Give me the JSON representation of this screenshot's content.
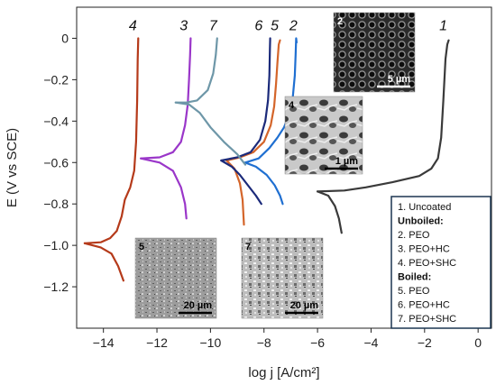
{
  "chart_data": {
    "type": "line",
    "xlabel": "log j [A/cm²]",
    "ylabel": "E (V vs SCE)",
    "xlim": [
      -15,
      0.5
    ],
    "ylim": [
      -1.4,
      0.15
    ],
    "xticks": [
      -14,
      -12,
      -10,
      -8,
      -6,
      -4,
      -2,
      0
    ],
    "yticks": [
      0,
      -0.2,
      -0.4,
      -0.6,
      -0.8,
      -1.0,
      -1.2
    ],
    "xtick_labels": [
      "−14",
      "−12",
      "−10",
      "−8",
      "−6",
      "−4",
      "−2",
      "0"
    ],
    "ytick_labels": [
      "0",
      "−0.2",
      "−0.4",
      "−0.6",
      "−0.8",
      "−1.0",
      "−1.2"
    ],
    "grid": false,
    "series": [
      {
        "id": "1",
        "color": "#3a3a3a",
        "points": [
          [
            -6.0,
            -0.74
          ],
          [
            -5.0,
            -0.735
          ],
          [
            -4.2,
            -0.72
          ],
          [
            -3.2,
            -0.695
          ],
          [
            -2.2,
            -0.665
          ],
          [
            -1.75,
            -0.63
          ],
          [
            -1.5,
            -0.58
          ],
          [
            -1.38,
            -0.48
          ],
          [
            -1.3,
            -0.3
          ],
          [
            -1.22,
            -0.1
          ],
          [
            -1.15,
            -0.03
          ],
          [
            -1.1,
            -0.01
          ]
        ]
      },
      {
        "id": "1c",
        "color": "#3a3a3a",
        "points": [
          [
            -6.0,
            -0.74
          ],
          [
            -5.6,
            -0.76
          ],
          [
            -5.35,
            -0.81
          ],
          [
            -5.2,
            -0.87
          ],
          [
            -5.1,
            -0.94
          ]
        ]
      },
      {
        "id": "2",
        "color": "#1f6fd1",
        "points": [
          [
            -8.7,
            -0.6
          ],
          [
            -8.2,
            -0.58
          ],
          [
            -7.8,
            -0.53
          ],
          [
            -7.5,
            -0.48
          ],
          [
            -7.25,
            -0.43
          ],
          [
            -7.1,
            -0.38
          ],
          [
            -6.95,
            -0.32
          ],
          [
            -6.9,
            -0.25
          ],
          [
            -6.85,
            -0.18
          ],
          [
            -6.82,
            -0.08
          ],
          [
            -6.8,
            0.0
          ],
          [
            -6.78,
            -0.02
          ]
        ]
      },
      {
        "id": "2c",
        "color": "#1f6fd1",
        "points": [
          [
            -8.7,
            -0.6
          ],
          [
            -8.3,
            -0.62
          ],
          [
            -7.9,
            -0.66
          ],
          [
            -7.6,
            -0.71
          ],
          [
            -7.4,
            -0.76
          ],
          [
            -7.3,
            -0.8
          ]
        ]
      },
      {
        "id": "3",
        "color": "#9a36c9",
        "points": [
          [
            -12.6,
            -0.58
          ],
          [
            -11.9,
            -0.575
          ],
          [
            -11.4,
            -0.55
          ],
          [
            -11.1,
            -0.5
          ],
          [
            -10.95,
            -0.42
          ],
          [
            -10.85,
            -0.32
          ],
          [
            -10.8,
            -0.2
          ],
          [
            -10.76,
            -0.08
          ],
          [
            -10.74,
            0.0
          ]
        ]
      },
      {
        "id": "3c",
        "color": "#9a36c9",
        "points": [
          [
            -12.6,
            -0.58
          ],
          [
            -11.9,
            -0.6
          ],
          [
            -11.4,
            -0.64
          ],
          [
            -11.1,
            -0.72
          ],
          [
            -10.95,
            -0.8
          ],
          [
            -10.9,
            -0.87
          ]
        ]
      },
      {
        "id": "4",
        "color": "#b53a1a",
        "points": [
          [
            -14.7,
            -0.99
          ],
          [
            -14.1,
            -0.985
          ],
          [
            -13.75,
            -0.965
          ],
          [
            -13.5,
            -0.93
          ],
          [
            -13.32,
            -0.86
          ],
          [
            -13.2,
            -0.78
          ],
          [
            -13.0,
            -0.72
          ],
          [
            -12.85,
            -0.64
          ],
          [
            -12.78,
            -0.5
          ],
          [
            -12.74,
            -0.3
          ],
          [
            -12.72,
            -0.1
          ],
          [
            -12.7,
            0.0
          ]
        ]
      },
      {
        "id": "4c",
        "color": "#b53a1a",
        "points": [
          [
            -14.7,
            -0.99
          ],
          [
            -14.1,
            -1.01
          ],
          [
            -13.7,
            -1.04
          ],
          [
            -13.45,
            -1.1
          ],
          [
            -13.25,
            -1.17
          ]
        ]
      },
      {
        "id": "5",
        "color": "#d4652a",
        "points": [
          [
            -9.4,
            -0.59
          ],
          [
            -8.9,
            -0.575
          ],
          [
            -8.4,
            -0.55
          ],
          [
            -8.0,
            -0.5
          ],
          [
            -7.75,
            -0.42
          ],
          [
            -7.62,
            -0.33
          ],
          [
            -7.55,
            -0.22
          ],
          [
            -7.5,
            -0.12
          ],
          [
            -7.45,
            -0.03
          ],
          [
            -7.4,
            -0.01
          ]
        ]
      },
      {
        "id": "5c",
        "color": "#d4652a",
        "points": [
          [
            -9.4,
            -0.59
          ],
          [
            -9.1,
            -0.63
          ],
          [
            -8.9,
            -0.7
          ],
          [
            -8.8,
            -0.78
          ],
          [
            -8.75,
            -0.9
          ]
        ]
      },
      {
        "id": "6",
        "color": "#1b2a7a",
        "points": [
          [
            -9.6,
            -0.59
          ],
          [
            -9.0,
            -0.575
          ],
          [
            -8.5,
            -0.55
          ],
          [
            -8.15,
            -0.49
          ],
          [
            -7.95,
            -0.4
          ],
          [
            -7.85,
            -0.3
          ],
          [
            -7.8,
            -0.18
          ],
          [
            -7.78,
            -0.05
          ],
          [
            -7.77,
            0.0
          ]
        ]
      },
      {
        "id": "6c",
        "color": "#1b2a7a",
        "points": [
          [
            -9.6,
            -0.59
          ],
          [
            -9.2,
            -0.62
          ],
          [
            -8.9,
            -0.66
          ],
          [
            -8.6,
            -0.71
          ],
          [
            -8.3,
            -0.76
          ],
          [
            -8.1,
            -0.8
          ]
        ]
      },
      {
        "id": "7",
        "color": "#6e97a8",
        "points": [
          [
            -11.3,
            -0.31
          ],
          [
            -10.9,
            -0.31
          ],
          [
            -10.5,
            -0.3
          ],
          [
            -10.1,
            -0.25
          ],
          [
            -9.9,
            -0.17
          ],
          [
            -9.8,
            -0.08
          ],
          [
            -9.75,
            0.0
          ]
        ]
      },
      {
        "id": "7c",
        "color": "#6e97a8",
        "points": [
          [
            -11.3,
            -0.31
          ],
          [
            -10.8,
            -0.32
          ],
          [
            -10.4,
            -0.36
          ],
          [
            -10.0,
            -0.43
          ],
          [
            -9.5,
            -0.5
          ],
          [
            -9.0,
            -0.56
          ],
          [
            -8.7,
            -0.61
          ]
        ]
      }
    ],
    "curve_labels": [
      {
        "text": "4",
        "x": -12.9,
        "y": 0.04
      },
      {
        "text": "3",
        "x": -11.0,
        "y": 0.04
      },
      {
        "text": "7",
        "x": -9.9,
        "y": 0.04
      },
      {
        "text": "6",
        "x": -8.2,
        "y": 0.04
      },
      {
        "text": "5",
        "x": -7.6,
        "y": 0.04
      },
      {
        "text": "2",
        "x": -6.9,
        "y": 0.04
      },
      {
        "text": "1",
        "x": -1.3,
        "y": 0.04
      }
    ],
    "legend": {
      "placement": "bottom-right",
      "entries": [
        {
          "text": "1.    Uncoated",
          "heading": false
        },
        {
          "text": "Unboiled:",
          "heading": true
        },
        {
          "text": "2.    PEO",
          "heading": false
        },
        {
          "text": "3.    PEO+HC",
          "heading": false
        },
        {
          "text": "4.    PEO+SHC",
          "heading": false
        },
        {
          "text": "Boiled:",
          "heading": true
        },
        {
          "text": "5.    PEO",
          "heading": false
        },
        {
          "text": "6.    PEO+HC",
          "heading": false
        },
        {
          "text": "7.    PEO+SHC",
          "heading": false
        }
      ]
    },
    "insets": [
      {
        "id": "2",
        "label": "2",
        "scale_text": "5 µm",
        "texture": "pores-dark"
      },
      {
        "id": "4",
        "label": "4",
        "scale_text": "1 µm",
        "texture": "foam-light"
      },
      {
        "id": "5",
        "label": "5",
        "scale_text": "20 µm",
        "texture": "grain-mid"
      },
      {
        "id": "7",
        "label": "7",
        "scale_text": "20 µm",
        "texture": "grain-light"
      }
    ]
  }
}
